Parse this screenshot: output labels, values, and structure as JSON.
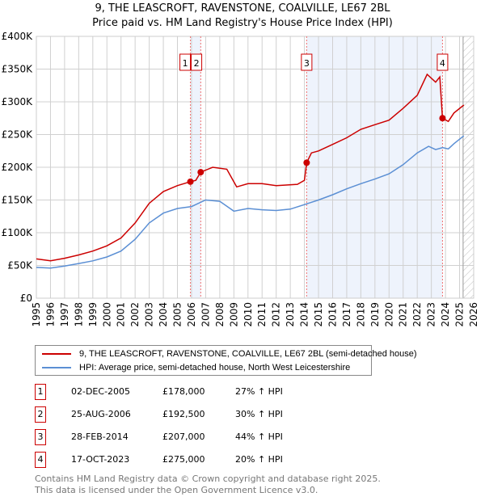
{
  "title_line1": "9, THE LEASCROFT, RAVENSTONE, COALVILLE, LE67 2BL",
  "title_line2": "Price paid vs. HM Land Registry's House Price Index (HPI)",
  "colors": {
    "property": "#cc0000",
    "hpi": "#5b8fd4",
    "shade": "#eef3fc",
    "marker_border": "#cc0000"
  },
  "chart_data": {
    "type": "line",
    "title": "Price paid vs. HM Land Registry's House Price Index (HPI)",
    "xlim": [
      1995,
      2026
    ],
    "ylim": [
      0,
      400000
    ],
    "x_ticks": [
      "1995",
      "1996",
      "1997",
      "1998",
      "1999",
      "2000",
      "2001",
      "2002",
      "2003",
      "2004",
      "2005",
      "2006",
      "2007",
      "2008",
      "2009",
      "2010",
      "2011",
      "2012",
      "2013",
      "2014",
      "2015",
      "2016",
      "2017",
      "2018",
      "2019",
      "2020",
      "2021",
      "2022",
      "2023",
      "2024",
      "2025",
      "2026"
    ],
    "y_ticks": [
      {
        "value": 0,
        "label": "£0"
      },
      {
        "value": 50000,
        "label": "£50K"
      },
      {
        "value": 100000,
        "label": "£100K"
      },
      {
        "value": 150000,
        "label": "£150K"
      },
      {
        "value": 200000,
        "label": "£200K"
      },
      {
        "value": 250000,
        "label": "£250K"
      },
      {
        "value": 300000,
        "label": "£300K"
      },
      {
        "value": 350000,
        "label": "£350K"
      },
      {
        "value": 400000,
        "label": "£400K"
      }
    ],
    "grid": true,
    "series": [
      {
        "name": "9, THE LEASCROFT, RAVENSTONE, COALVILLE, LE67 2BL (semi-detached house)",
        "x": [
          1995,
          1996,
          1997,
          1998,
          1999,
          2000,
          2001,
          2002,
          2003,
          2004,
          2005,
          2005.92,
          2006.3,
          2006.65,
          2007.5,
          2008.5,
          2009.2,
          2010,
          2011,
          2012,
          2013.5,
          2014.0,
          2014.16,
          2014.5,
          2015,
          2016,
          2017,
          2018,
          2019,
          2020,
          2021,
          2022,
          2022.7,
          2023.3,
          2023.6,
          2023.79,
          2024.2,
          2024.6,
          2025.3
        ],
        "y": [
          60000,
          57000,
          61000,
          66000,
          72000,
          80000,
          92000,
          115000,
          145000,
          163000,
          172000,
          178000,
          180000,
          192500,
          200000,
          197000,
          170000,
          175000,
          175000,
          172000,
          174000,
          180000,
          207000,
          222000,
          225000,
          235000,
          245000,
          258000,
          265000,
          272000,
          290000,
          310000,
          342000,
          330000,
          338000,
          275000,
          270000,
          283000,
          295000
        ]
      },
      {
        "name": "HPI: Average price, semi-detached house, North West Leicestershire",
        "x": [
          1995,
          1996,
          1997,
          1998,
          1999,
          2000,
          2001,
          2002,
          2003,
          2004,
          2005,
          2006,
          2007,
          2008,
          2009,
          2010,
          2011,
          2012,
          2013,
          2014,
          2015,
          2016,
          2017,
          2018,
          2019,
          2020,
          2021,
          2022,
          2022.8,
          2023.3,
          2023.8,
          2024.2,
          2024.6,
          2025.3
        ],
        "y": [
          47000,
          46000,
          49000,
          53000,
          57000,
          63000,
          72000,
          90000,
          115000,
          130000,
          137000,
          140000,
          150000,
          148000,
          133000,
          137000,
          135000,
          134000,
          136000,
          143000,
          150000,
          158000,
          167000,
          175000,
          182000,
          190000,
          204000,
          222000,
          232000,
          227000,
          230000,
          228000,
          236000,
          248000
        ]
      }
    ],
    "sales": [
      {
        "label": "1",
        "x": 2005.92,
        "y": 178000
      },
      {
        "label": "2",
        "x": 2006.65,
        "y": 192500
      },
      {
        "label": "3",
        "x": 2014.16,
        "y": 207000
      },
      {
        "label": "4",
        "x": 2023.79,
        "y": 275000
      }
    ],
    "hatched_from": 2025.25
  },
  "legend": {
    "property": "9, THE LEASCROFT, RAVENSTONE, COALVILLE, LE67 2BL (semi-detached house)",
    "hpi": "HPI: Average price, semi-detached house, North West Leicestershire"
  },
  "table": [
    {
      "num": "1",
      "date": "02-DEC-2005",
      "price": "£178,000",
      "hpi": "27% ↑ HPI"
    },
    {
      "num": "2",
      "date": "25-AUG-2006",
      "price": "£192,500",
      "hpi": "30% ↑ HPI"
    },
    {
      "num": "3",
      "date": "28-FEB-2014",
      "price": "£207,000",
      "hpi": "44% ↑ HPI"
    },
    {
      "num": "4",
      "date": "17-OCT-2023",
      "price": "£275,000",
      "hpi": "20% ↑ HPI"
    }
  ],
  "footer_line1": "Contains HM Land Registry data © Crown copyright and database right 2025.",
  "footer_line2": "This data is licensed under the Open Government Licence v3.0."
}
